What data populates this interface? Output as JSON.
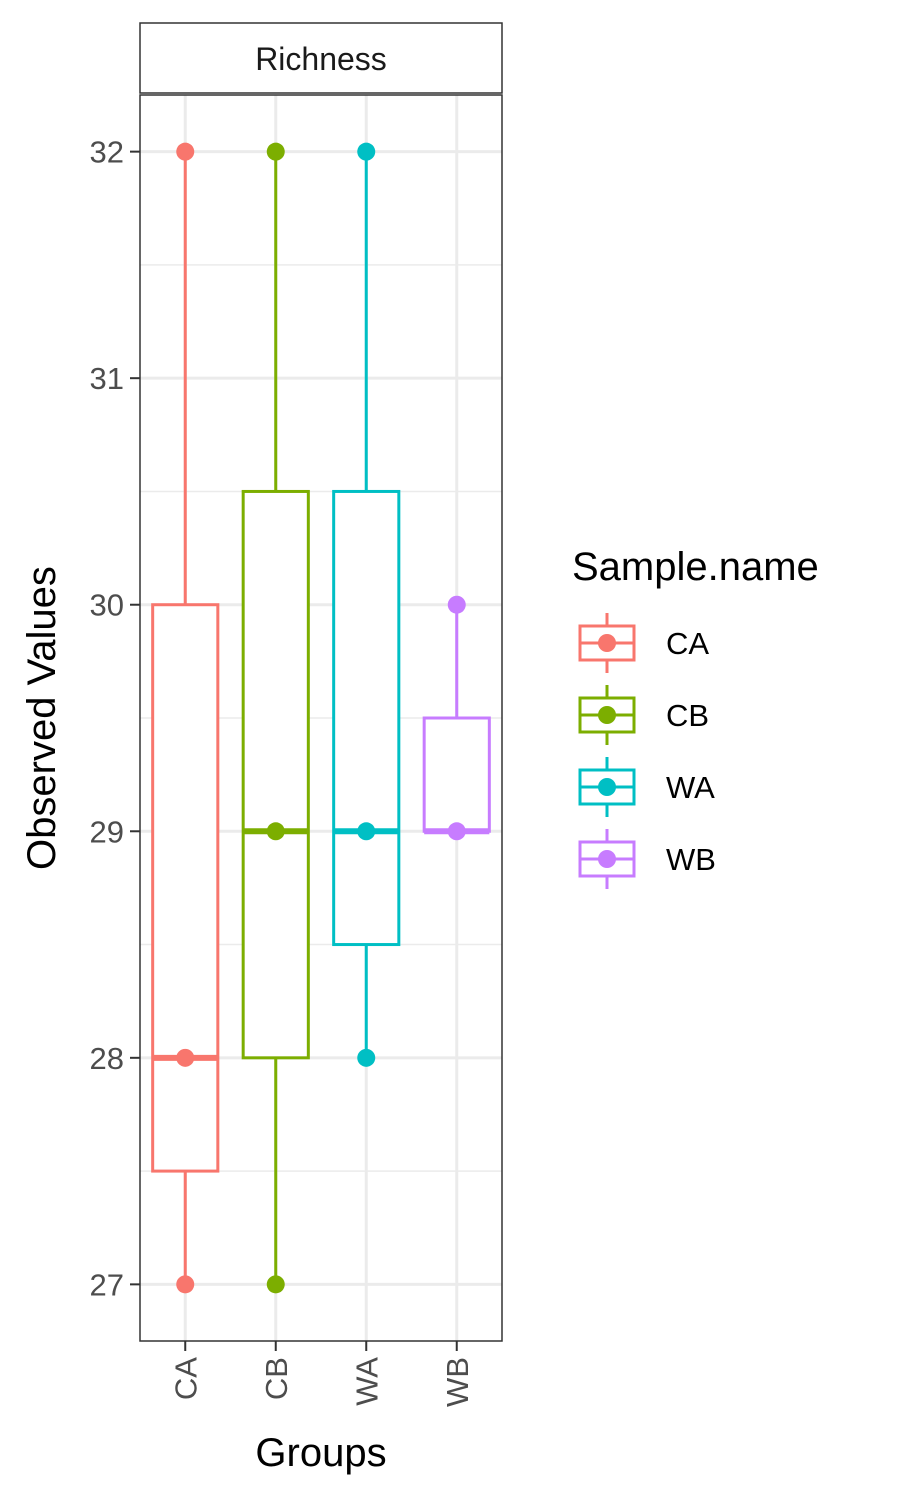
{
  "chart_data": {
    "type": "boxplot",
    "facet_label": "Richness",
    "xlabel": "Groups",
    "ylabel": "Observed Values",
    "categories": [
      "CA",
      "CB",
      "WA",
      "WB"
    ],
    "ylim": [
      26.75,
      32.25
    ],
    "yticks": [
      27,
      28,
      29,
      30,
      31,
      32
    ],
    "grid": true,
    "legend": {
      "title": "Sample.name",
      "position": "right"
    },
    "series": [
      {
        "name": "CA",
        "color": "#F8766D",
        "min": 27,
        "q1": 27.5,
        "median": 28,
        "q3": 30,
        "max": 32,
        "points": [
          32,
          28,
          27
        ]
      },
      {
        "name": "CB",
        "color": "#7CAE00",
        "min": 27,
        "q1": 28,
        "median": 29,
        "q3": 30.5,
        "max": 32,
        "points": [
          32,
          29,
          27
        ]
      },
      {
        "name": "WA",
        "color": "#00BFC4",
        "min": 28,
        "q1": 28.5,
        "median": 29,
        "q3": 30.5,
        "max": 32,
        "points": [
          32,
          29,
          28
        ]
      },
      {
        "name": "WB",
        "color": "#C77CFF",
        "min": 29,
        "q1": 29,
        "median": 29,
        "q3": 29.5,
        "max": 30,
        "points": [
          30,
          29
        ]
      }
    ]
  }
}
